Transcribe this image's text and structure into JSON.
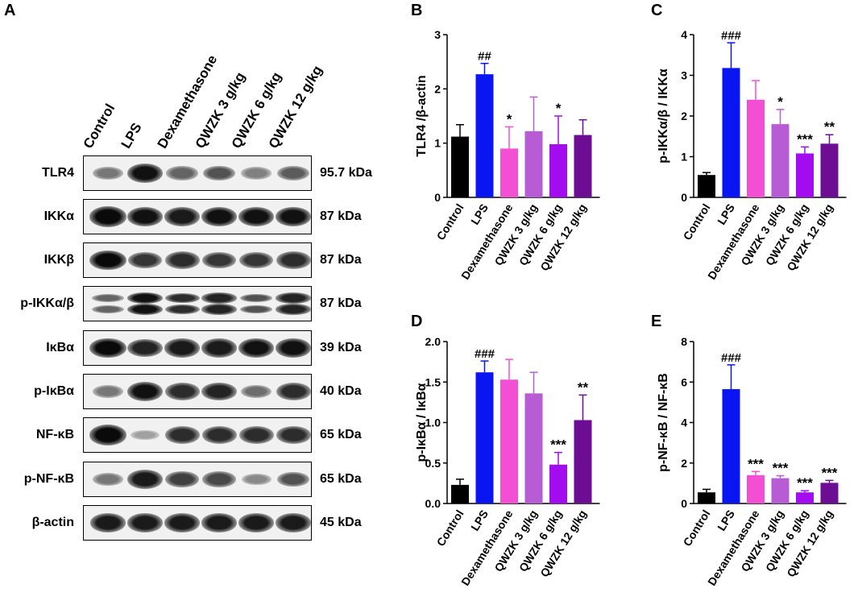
{
  "panels": {
    "A": "A",
    "B": "B",
    "C": "C",
    "D": "D",
    "E": "E"
  },
  "lanes": [
    "Control",
    "LPS",
    "Dexamethasone",
    "QWZK 3 g/kg",
    "QWZK 6 g/kg",
    "QWZK 12 g/kg"
  ],
  "blots": [
    {
      "name": "TLR4",
      "kda": "95.7 kDa",
      "intensity": [
        0.35,
        0.9,
        0.45,
        0.55,
        0.3,
        0.5
      ],
      "double": false
    },
    {
      "name": "IKKα",
      "kda": "87 kDa",
      "intensity": [
        1.0,
        0.9,
        0.85,
        0.9,
        0.9,
        0.9
      ],
      "double": false
    },
    {
      "name": "IKKβ",
      "kda": "87 kDa",
      "intensity": [
        0.95,
        0.7,
        0.75,
        0.7,
        0.7,
        0.75
      ],
      "double": false
    },
    {
      "name": "p-IKKα/β",
      "kda": "87 kDa",
      "intensity": [
        0.45,
        0.9,
        0.75,
        0.8,
        0.55,
        0.8
      ],
      "double": true
    },
    {
      "name": "IκBα",
      "kda": "39 kDa",
      "intensity": [
        0.95,
        0.8,
        0.85,
        0.85,
        0.9,
        0.9
      ],
      "double": false
    },
    {
      "name": "p-IκBα",
      "kda": "40 kDa",
      "intensity": [
        0.35,
        0.9,
        0.75,
        0.8,
        0.4,
        0.75
      ],
      "double": false
    },
    {
      "name": "NF-κB",
      "kda": "65 kDa",
      "intensity": [
        1.0,
        0.12,
        0.75,
        0.75,
        0.75,
        0.75
      ],
      "double": false
    },
    {
      "name": "p-NF-κB",
      "kda": "65 kDa",
      "intensity": [
        0.35,
        0.85,
        0.65,
        0.6,
        0.25,
        0.55
      ],
      "double": false
    },
    {
      "name": "β-actin",
      "kda": "45 kDa",
      "intensity": [
        0.85,
        0.85,
        0.85,
        0.85,
        0.85,
        0.85
      ],
      "double": false
    }
  ],
  "colors": [
    "#000000",
    "#0a16f2",
    "#f24fd4",
    "#b85cd6",
    "#a40cf0",
    "#6d0d94"
  ],
  "chart_data": [
    {
      "panel": "B",
      "type": "bar",
      "ylabel": "TLR4 /β-actin",
      "categories": [
        "Control",
        "LPS",
        "Dexamethasone",
        "QWZK 3 g/kg",
        "QWZK 6 g/kg",
        "QWZK 12 g/kg"
      ],
      "values": [
        1.12,
        2.27,
        0.9,
        1.22,
        0.98,
        1.15
      ],
      "errors": [
        0.22,
        0.2,
        0.4,
        0.63,
        0.52,
        0.28
      ],
      "annotations": [
        "",
        "##",
        "*",
        "",
        "*",
        ""
      ],
      "ylim": [
        0,
        3
      ],
      "yticks": [
        "0",
        "1",
        "2",
        "3"
      ]
    },
    {
      "panel": "C",
      "type": "bar",
      "ylabel": "p-IKKα/β / IKKα",
      "categories": [
        "Control",
        "LPS",
        "Dexamethasone",
        "QWZK 3 g/kg",
        "QWZK 6 g/kg",
        "QWZK 12 g/kg"
      ],
      "values": [
        0.55,
        3.18,
        2.4,
        1.8,
        1.08,
        1.32
      ],
      "errors": [
        0.06,
        0.62,
        0.47,
        0.36,
        0.16,
        0.22
      ],
      "annotations": [
        "",
        "###",
        "",
        "*",
        "***",
        "**"
      ],
      "ylim": [
        0,
        4
      ],
      "yticks": [
        "0",
        "1",
        "2",
        "3",
        "4"
      ]
    },
    {
      "panel": "D",
      "type": "bar",
      "ylabel": "p-IκBα / IκBα",
      "categories": [
        "Control",
        "LPS",
        "Dexamethasone",
        "QWZK 3 g/kg",
        "QWZK 6 g/kg",
        "QWZK 12 g/kg"
      ],
      "values": [
        0.23,
        1.62,
        1.53,
        1.36,
        0.48,
        1.03
      ],
      "errors": [
        0.07,
        0.14,
        0.25,
        0.26,
        0.15,
        0.31
      ],
      "annotations": [
        "",
        "###",
        "",
        "",
        "***",
        "**"
      ],
      "ylim": [
        0,
        2
      ],
      "yticks": [
        "0.0",
        "0.5",
        "1.0",
        "1.5",
        "2.0"
      ]
    },
    {
      "panel": "E",
      "type": "bar",
      "ylabel": "p-NF-κB / NF-κB",
      "categories": [
        "Control",
        "LPS",
        "Dexamethasone",
        "QWZK 3 g/kg",
        "QWZK 6 g/kg",
        "QWZK 12 g/kg"
      ],
      "values": [
        0.55,
        5.65,
        1.4,
        1.25,
        0.55,
        1.02
      ],
      "errors": [
        0.15,
        1.2,
        0.18,
        0.12,
        0.08,
        0.12
      ],
      "annotations": [
        "",
        "###",
        "***",
        "***",
        "***",
        "***"
      ],
      "ylim": [
        0,
        8
      ],
      "yticks": [
        "0",
        "2",
        "4",
        "6",
        "8"
      ]
    }
  ]
}
